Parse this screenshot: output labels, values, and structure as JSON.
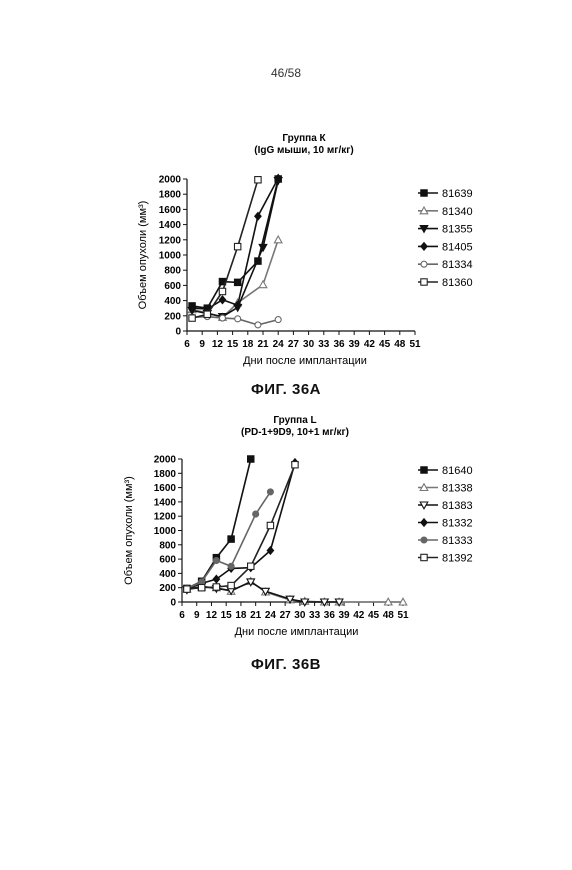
{
  "page": {
    "number": "46/58"
  },
  "chart_data": [
    {
      "type": "line",
      "title": "Группа К",
      "subtitle": "(IgG мыши, 10 мг/кг)",
      "xlabel": "Дни после имплантации",
      "ylabel": "Объем опухоли (мм³)",
      "caption": "ФИГ. 36А",
      "xlim": [
        6,
        51
      ],
      "ylim": [
        0,
        2000
      ],
      "x_ticks": [
        6,
        9,
        12,
        15,
        18,
        21,
        24,
        27,
        30,
        33,
        36,
        39,
        42,
        45,
        48,
        51
      ],
      "y_ticks": [
        0,
        200,
        400,
        600,
        800,
        1000,
        1200,
        1400,
        1600,
        1800,
        2000
      ],
      "legend_position": "right",
      "series": [
        {
          "name": "81639",
          "marker": "square",
          "values": [
            [
              7,
              330
            ],
            [
              10,
              300
            ],
            [
              13,
              650
            ],
            [
              16,
              640
            ],
            [
              20,
              920
            ],
            [
              24,
              2000
            ]
          ]
        },
        {
          "name": "81340",
          "marker": "triangle-up-open",
          "values": [
            [
              7,
              280
            ],
            [
              10,
              240
            ],
            [
              13,
              180
            ],
            [
              16,
              370
            ],
            [
              21,
              610
            ],
            [
              24,
              1200
            ]
          ]
        },
        {
          "name": "81355",
          "marker": "triangle-down",
          "values": [
            [
              7,
              270
            ],
            [
              10,
              230
            ],
            [
              13,
              190
            ],
            [
              16,
              310
            ],
            [
              21,
              1100
            ],
            [
              24,
              1980
            ]
          ]
        },
        {
          "name": "81405",
          "marker": "diamond",
          "values": [
            [
              7,
              300
            ],
            [
              10,
              290
            ],
            [
              13,
              410
            ],
            [
              16,
              340
            ],
            [
              20,
              1510
            ],
            [
              24,
              2010
            ]
          ]
        },
        {
          "name": "81334",
          "marker": "circle-open",
          "values": [
            [
              7,
              180
            ],
            [
              10,
              190
            ],
            [
              13,
              170
            ],
            [
              16,
              160
            ],
            [
              20,
              80
            ],
            [
              24,
              150
            ]
          ]
        },
        {
          "name": "81360",
          "marker": "square-open",
          "values": [
            [
              7,
              170
            ],
            [
              10,
              220
            ],
            [
              13,
              520
            ],
            [
              16,
              1110
            ],
            [
              20,
              1990
            ]
          ]
        }
      ]
    },
    {
      "type": "line",
      "title": "Группа L",
      "subtitle": "(PD-1+9D9, 10+1 мг/кг)",
      "xlabel": "Дни после имплантации",
      "ylabel": "Объем опухоли (мм³)",
      "caption": "ФИГ. 36В",
      "xlim": [
        6,
        51
      ],
      "ylim": [
        0,
        2000
      ],
      "x_ticks": [
        6,
        9,
        12,
        15,
        18,
        21,
        24,
        27,
        30,
        33,
        36,
        39,
        42,
        45,
        48,
        51
      ],
      "y_ticks": [
        0,
        200,
        400,
        600,
        800,
        1000,
        1200,
        1400,
        1600,
        1800,
        2000
      ],
      "legend_position": "right",
      "series": [
        {
          "name": "81640",
          "marker": "square",
          "values": [
            [
              7,
              190
            ],
            [
              10,
              290
            ],
            [
              13,
              620
            ],
            [
              16,
              880
            ],
            [
              20,
              2000
            ]
          ]
        },
        {
          "name": "81338",
          "marker": "triangle-up-open",
          "values": [
            [
              7,
              180
            ],
            [
              10,
              210
            ],
            [
              13,
              200
            ],
            [
              16,
              150
            ],
            [
              20,
              290
            ],
            [
              23,
              140
            ],
            [
              28,
              30
            ],
            [
              31,
              10
            ],
            [
              35,
              0
            ],
            [
              38,
              0
            ],
            [
              48,
              0
            ],
            [
              51,
              0
            ]
          ]
        },
        {
          "name": "81383",
          "marker": "triangle-down-open",
          "values": [
            [
              7,
              170
            ],
            [
              10,
              220
            ],
            [
              13,
              190
            ],
            [
              16,
              160
            ],
            [
              20,
              280
            ],
            [
              23,
              150
            ],
            [
              28,
              40
            ],
            [
              31,
              0
            ],
            [
              35,
              0
            ],
            [
              38,
              0
            ]
          ]
        },
        {
          "name": "81332",
          "marker": "diamond",
          "values": [
            [
              7,
              180
            ],
            [
              10,
              260
            ],
            [
              13,
              320
            ],
            [
              16,
              470
            ],
            [
              20,
              480
            ],
            [
              24,
              720
            ],
            [
              29,
              1950
            ]
          ]
        },
        {
          "name": "81333",
          "marker": "circle",
          "values": [
            [
              7,
              190
            ],
            [
              10,
              280
            ],
            [
              13,
              580
            ],
            [
              16,
              500
            ],
            [
              21,
              1230
            ],
            [
              24,
              1540
            ]
          ]
        },
        {
          "name": "81392",
          "marker": "square-open",
          "values": [
            [
              7,
              180
            ],
            [
              10,
              200
            ],
            [
              13,
              210
            ],
            [
              16,
              230
            ],
            [
              20,
              500
            ],
            [
              24,
              1070
            ],
            [
              29,
              1920
            ]
          ]
        }
      ]
    }
  ]
}
